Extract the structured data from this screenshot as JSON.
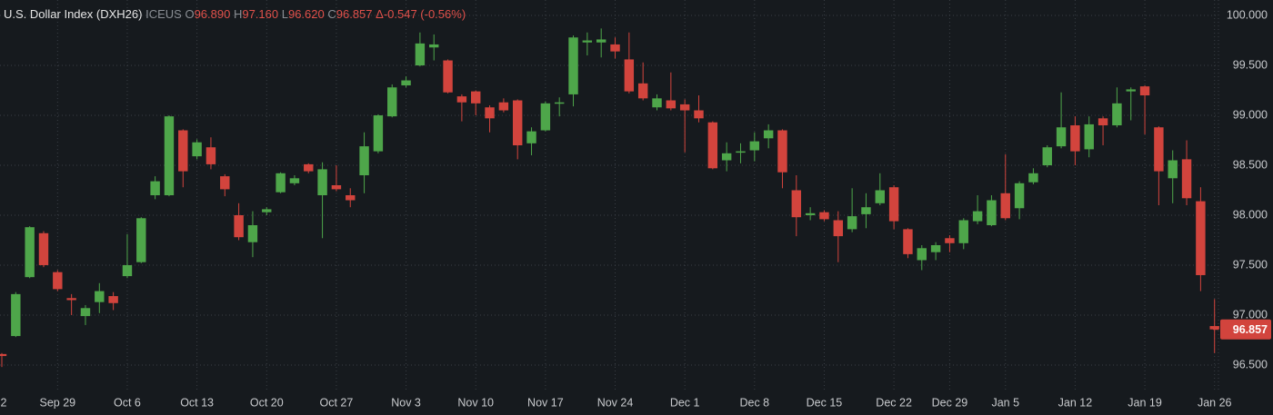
{
  "header": {
    "title": "U.S. Dollar Index (DXH26)",
    "exchange": "ICEUS",
    "open_key": "O",
    "open": "96.890",
    "high_key": "H",
    "high": "97.160",
    "low_key": "L",
    "low": "96.620",
    "close_key": "C",
    "close": "96.857",
    "change": "Δ-0.547 (-0.56%)"
  },
  "chart_data": {
    "type": "candlestick",
    "up_color": "#4ea64a",
    "down_color": "#d2443d",
    "x": [
      0,
      1,
      2,
      3,
      4,
      5,
      6,
      7,
      8,
      9,
      10,
      11,
      12,
      13,
      14,
      15,
      16,
      17,
      18,
      19,
      20,
      21,
      22,
      23,
      24,
      25,
      26,
      27,
      28,
      29,
      30,
      31,
      32,
      33,
      34,
      35,
      36,
      37,
      38,
      39,
      40,
      41,
      42,
      43,
      44,
      45,
      46,
      47,
      48,
      49,
      50,
      51,
      52,
      53,
      54,
      55,
      56,
      57,
      58,
      59,
      60,
      61,
      62,
      63,
      64,
      65,
      66,
      67,
      68,
      69,
      70,
      71,
      72,
      73,
      74,
      75,
      76,
      77,
      78,
      79,
      80,
      81,
      82,
      83,
      84,
      85,
      86,
      87
    ],
    "open": [
      96.61,
      96.79,
      97.38,
      97.82,
      97.43,
      97.17,
      96.99,
      97.13,
      97.19,
      97.39,
      97.53,
      98.2,
      98.2,
      98.85,
      98.59,
      98.68,
      98.39,
      98.0,
      97.73,
      98.03,
      98.23,
      98.32,
      98.51,
      98.2,
      98.3,
      98.2,
      98.4,
      98.64,
      98.99,
      99.3,
      99.5,
      99.68,
      99.55,
      99.19,
      99.24,
      99.08,
      99.13,
      99.15,
      98.72,
      98.85,
      99.12,
      99.21,
      99.73,
      99.73,
      99.71,
      99.56,
      99.32,
      99.08,
      99.15,
      99.11,
      99.05,
      98.93,
      98.55,
      98.63,
      98.65,
      98.77,
      98.85,
      98.25,
      98.0,
      98.03,
      97.95,
      97.86,
      98.01,
      98.12,
      98.28,
      97.86,
      97.55,
      97.63,
      97.77,
      97.72,
      97.94,
      97.9,
      98.22,
      98.07,
      98.33,
      98.5,
      98.69,
      98.9,
      98.66,
      98.97,
      98.9,
      99.24,
      99.29,
      98.88,
      98.37,
      98.56,
      98.14,
      96.89
    ],
    "high": [
      96.62,
      97.23,
      97.89,
      97.84,
      97.45,
      97.21,
      97.1,
      97.32,
      97.23,
      97.81,
      97.98,
      98.39,
      99.0,
      98.86,
      98.76,
      98.78,
      98.41,
      98.12,
      98.04,
      98.08,
      98.43,
      98.4,
      98.52,
      98.53,
      98.5,
      98.27,
      98.83,
      99.01,
      99.31,
      99.39,
      99.83,
      99.81,
      99.56,
      99.21,
      99.25,
      99.1,
      99.17,
      99.16,
      98.88,
      99.14,
      99.18,
      99.8,
      99.83,
      99.87,
      99.78,
      99.83,
      99.53,
      99.21,
      99.43,
      99.16,
      99.2,
      98.94,
      98.73,
      98.72,
      98.83,
      98.91,
      98.86,
      98.4,
      98.08,
      98.05,
      98.04,
      98.27,
      98.22,
      98.42,
      98.3,
      97.87,
      97.7,
      97.73,
      97.8,
      97.97,
      98.2,
      98.2,
      98.61,
      98.34,
      98.47,
      98.7,
      99.23,
      98.99,
      98.99,
      98.99,
      99.28,
      99.28,
      99.3,
      98.89,
      98.65,
      98.75,
      98.28,
      97.16
    ],
    "low": [
      96.48,
      96.78,
      97.37,
      97.48,
      97.24,
      97.0,
      96.9,
      97.02,
      97.05,
      97.37,
      97.52,
      98.16,
      98.19,
      98.28,
      98.56,
      98.46,
      98.19,
      97.75,
      97.58,
      98.0,
      98.22,
      98.3,
      98.42,
      97.77,
      98.24,
      98.08,
      98.22,
      98.62,
      98.98,
      99.28,
      99.49,
      99.55,
      99.22,
      98.94,
      99.0,
      98.83,
      99.03,
      98.56,
      98.6,
      98.84,
      98.99,
      99.09,
      99.6,
      99.58,
      99.57,
      99.22,
      99.15,
      99.05,
      99.05,
      98.63,
      98.93,
      98.46,
      98.44,
      98.52,
      98.54,
      98.67,
      98.27,
      97.79,
      97.95,
      97.94,
      97.53,
      97.83,
      97.87,
      98.1,
      97.86,
      97.57,
      97.45,
      97.55,
      97.63,
      97.66,
      97.91,
      97.89,
      97.95,
      97.96,
      98.31,
      98.48,
      98.67,
      98.5,
      98.58,
      98.7,
      98.88,
      98.95,
      98.81,
      98.1,
      98.12,
      98.1,
      97.24,
      96.62
    ],
    "close": [
      96.59,
      97.21,
      97.88,
      97.5,
      97.26,
      97.15,
      97.07,
      97.24,
      97.12,
      97.5,
      97.97,
      98.34,
      98.99,
      98.44,
      98.73,
      98.51,
      98.26,
      97.78,
      97.9,
      98.06,
      98.42,
      98.37,
      98.44,
      98.46,
      98.26,
      98.15,
      98.69,
      99.0,
      99.28,
      99.35,
      99.72,
      99.71,
      99.23,
      99.13,
      99.12,
      98.97,
      99.05,
      98.7,
      98.84,
      99.12,
      99.13,
      99.78,
      99.75,
      99.76,
      99.64,
      99.24,
      99.17,
      99.17,
      99.07,
      99.05,
      98.97,
      98.47,
      98.62,
      98.64,
      98.74,
      98.85,
      98.43,
      97.98,
      98.02,
      97.96,
      97.79,
      97.99,
      98.08,
      98.25,
      97.94,
      97.61,
      97.67,
      97.7,
      97.72,
      97.95,
      98.04,
      98.15,
      97.97,
      98.32,
      98.42,
      98.68,
      98.88,
      98.64,
      98.91,
      98.9,
      99.12,
      99.26,
      99.2,
      98.44,
      98.55,
      98.17,
      97.4,
      96.857
    ],
    "xlim": [
      -0.13,
      87.28
    ],
    "xticks": [
      {
        "value": -1,
        "label": "2"
      },
      {
        "value": 4,
        "label": "Sep 29"
      },
      {
        "value": 9,
        "label": "Oct 6"
      },
      {
        "value": 14,
        "label": "Oct 13"
      },
      {
        "value": 19,
        "label": "Oct 20"
      },
      {
        "value": 24,
        "label": "Oct 27"
      },
      {
        "value": 29,
        "label": "Nov 3"
      },
      {
        "value": 34,
        "label": "Nov 10"
      },
      {
        "value": 39,
        "label": "Nov 17"
      },
      {
        "value": 44,
        "label": "Nov 24"
      },
      {
        "value": 49,
        "label": "Dec 1"
      },
      {
        "value": 54,
        "label": "Dec 8"
      },
      {
        "value": 59,
        "label": "Dec 15"
      },
      {
        "value": 64,
        "label": "Dec 22"
      },
      {
        "value": 68,
        "label": "Dec 29"
      },
      {
        "value": 72,
        "label": "Jan 5"
      },
      {
        "value": 77,
        "label": "Jan 12"
      },
      {
        "value": 82,
        "label": "Jan 19"
      },
      {
        "value": 87,
        "label": "Jan 26"
      }
    ],
    "ylim": [
      96.245,
      100.155
    ],
    "yticks": [
      {
        "value": 96.5,
        "label": "96.500"
      },
      {
        "value": 97,
        "label": "97.000"
      },
      {
        "value": 97.5,
        "label": "97.500"
      },
      {
        "value": 98,
        "label": "98.000"
      },
      {
        "value": 98.5,
        "label": "98.500"
      },
      {
        "value": 99,
        "label": "99.000"
      },
      {
        "value": 99.5,
        "label": "99.500"
      },
      {
        "value": 100,
        "label": "100.000"
      }
    ],
    "last_price": {
      "value": 96.857,
      "label": "96.857"
    },
    "grid": true
  }
}
